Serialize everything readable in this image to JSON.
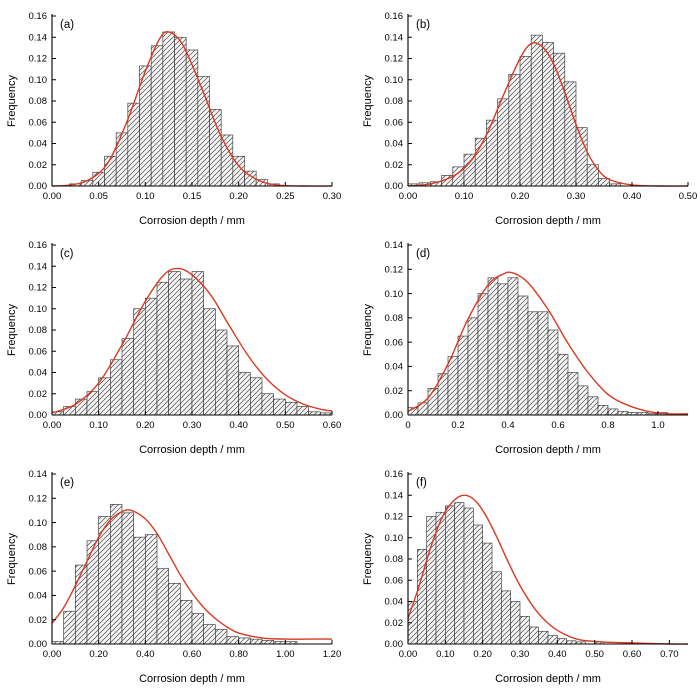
{
  "figure": {
    "background": "#ffffff",
    "curve_color": "#d93a21",
    "bar_fill": "#f5f5f5",
    "bar_hatch_color": "#4a4a4a",
    "bar_edge_color": "#2a2a2a",
    "axis_color": "#000000",
    "text_color": "#000000"
  },
  "chart_data": [
    {
      "type": "bar",
      "panel_label": "(a)",
      "xlabel": "Corrosion depth / mm",
      "ylabel": "Frequency",
      "xlim": [
        0,
        0.3
      ],
      "ylim": [
        0,
        0.16
      ],
      "xtick_vals": [
        0,
        0.05,
        0.1,
        0.15,
        0.2,
        0.25,
        0.3
      ],
      "xtick_labels": [
        "0.00",
        "0.05",
        "0.10",
        "0.15",
        "0.20",
        "0.25",
        "0.30"
      ],
      "ytick_vals": [
        0,
        0.02,
        0.04,
        0.06,
        0.08,
        0.1,
        0.12,
        0.14,
        0.16
      ],
      "ytick_labels": [
        "0.00",
        "0.02",
        "0.04",
        "0.06",
        "0.08",
        "0.10",
        "0.12",
        "0.14",
        "0.16"
      ],
      "bin_width": 0.0125,
      "bars": [
        [
          0.025,
          0.002
        ],
        [
          0.0375,
          0.005
        ],
        [
          0.05,
          0.013
        ],
        [
          0.0625,
          0.028
        ],
        [
          0.075,
          0.05
        ],
        [
          0.0875,
          0.078
        ],
        [
          0.1,
          0.113
        ],
        [
          0.1125,
          0.132
        ],
        [
          0.125,
          0.145
        ],
        [
          0.1375,
          0.14
        ],
        [
          0.15,
          0.128
        ],
        [
          0.1625,
          0.103
        ],
        [
          0.175,
          0.072
        ],
        [
          0.1875,
          0.048
        ],
        [
          0.2,
          0.028
        ],
        [
          0.2125,
          0.014
        ],
        [
          0.225,
          0.006
        ],
        [
          0.2375,
          0.002
        ]
      ],
      "fit_curve": [
        [
          0,
          0
        ],
        [
          0.02,
          0.001
        ],
        [
          0.04,
          0.006
        ],
        [
          0.06,
          0.022
        ],
        [
          0.08,
          0.06
        ],
        [
          0.1,
          0.108
        ],
        [
          0.115,
          0.138
        ],
        [
          0.125,
          0.145
        ],
        [
          0.14,
          0.133
        ],
        [
          0.16,
          0.093
        ],
        [
          0.18,
          0.049
        ],
        [
          0.2,
          0.019
        ],
        [
          0.22,
          0.006
        ],
        [
          0.24,
          0.001
        ],
        [
          0.27,
          0
        ],
        [
          0.3,
          0
        ]
      ]
    },
    {
      "type": "bar",
      "panel_label": "(b)",
      "xlabel": "Corrosion depth / mm",
      "ylabel": "Frequency",
      "xlim": [
        0,
        0.5
      ],
      "ylim": [
        0,
        0.16
      ],
      "xtick_vals": [
        0,
        0.1,
        0.2,
        0.3,
        0.4,
        0.5
      ],
      "xtick_labels": [
        "0.00",
        "0.10",
        "0.20",
        "0.30",
        "0.40",
        "0.50"
      ],
      "ytick_vals": [
        0,
        0.02,
        0.04,
        0.06,
        0.08,
        0.1,
        0.12,
        0.14,
        0.16
      ],
      "ytick_labels": [
        "0.00",
        "0.02",
        "0.04",
        "0.06",
        "0.08",
        "0.10",
        "0.12",
        "0.14",
        "0.16"
      ],
      "bin_width": 0.02,
      "bars": [
        [
          0.01,
          0.002
        ],
        [
          0.03,
          0.003
        ],
        [
          0.05,
          0.004
        ],
        [
          0.07,
          0.01
        ],
        [
          0.09,
          0.018
        ],
        [
          0.11,
          0.03
        ],
        [
          0.13,
          0.045
        ],
        [
          0.15,
          0.062
        ],
        [
          0.17,
          0.082
        ],
        [
          0.19,
          0.105
        ],
        [
          0.21,
          0.122
        ],
        [
          0.23,
          0.142
        ],
        [
          0.25,
          0.135
        ],
        [
          0.27,
          0.125
        ],
        [
          0.29,
          0.098
        ],
        [
          0.31,
          0.055
        ],
        [
          0.33,
          0.02
        ],
        [
          0.35,
          0.007
        ],
        [
          0.37,
          0.002
        ]
      ],
      "fit_curve": [
        [
          0,
          0
        ],
        [
          0.04,
          0.002
        ],
        [
          0.08,
          0.009
        ],
        [
          0.11,
          0.022
        ],
        [
          0.14,
          0.048
        ],
        [
          0.17,
          0.085
        ],
        [
          0.2,
          0.12
        ],
        [
          0.22,
          0.134
        ],
        [
          0.24,
          0.131
        ],
        [
          0.26,
          0.115
        ],
        [
          0.28,
          0.088
        ],
        [
          0.3,
          0.058
        ],
        [
          0.32,
          0.032
        ],
        [
          0.34,
          0.015
        ],
        [
          0.36,
          0.006
        ],
        [
          0.4,
          0.001
        ],
        [
          0.45,
          0
        ],
        [
          0.5,
          0
        ]
      ]
    },
    {
      "type": "bar",
      "panel_label": "(c)",
      "xlabel": "Corrosion depth / mm",
      "ylabel": "Frequency",
      "xlim": [
        0,
        0.6
      ],
      "ylim": [
        0,
        0.16
      ],
      "xtick_vals": [
        0,
        0.1,
        0.2,
        0.3,
        0.4,
        0.5,
        0.6
      ],
      "xtick_labels": [
        "0.00",
        "0.10",
        "0.20",
        "0.30",
        "0.40",
        "0.50",
        "0.60"
      ],
      "ytick_vals": [
        0,
        0.02,
        0.04,
        0.06,
        0.08,
        0.1,
        0.12,
        0.14,
        0.16
      ],
      "ytick_labels": [
        "0.00",
        "0.02",
        "0.04",
        "0.06",
        "0.08",
        "0.10",
        "0.12",
        "0.14",
        "0.16"
      ],
      "bin_width": 0.025,
      "bars": [
        [
          0.0125,
          0.003
        ],
        [
          0.0375,
          0.008
        ],
        [
          0.0625,
          0.015
        ],
        [
          0.0875,
          0.022
        ],
        [
          0.1125,
          0.035
        ],
        [
          0.1375,
          0.052
        ],
        [
          0.1625,
          0.072
        ],
        [
          0.1875,
          0.1
        ],
        [
          0.2125,
          0.11
        ],
        [
          0.2375,
          0.125
        ],
        [
          0.2625,
          0.135
        ],
        [
          0.2875,
          0.128
        ],
        [
          0.3125,
          0.135
        ],
        [
          0.3375,
          0.1
        ],
        [
          0.3625,
          0.08
        ],
        [
          0.3875,
          0.065
        ],
        [
          0.4125,
          0.04
        ],
        [
          0.4375,
          0.035
        ],
        [
          0.4625,
          0.02
        ],
        [
          0.4875,
          0.015
        ],
        [
          0.5125,
          0.012
        ],
        [
          0.5375,
          0.008
        ],
        [
          0.5625,
          0.003
        ],
        [
          0.5875,
          0.002
        ]
      ],
      "fit_curve": [
        [
          0,
          0.002
        ],
        [
          0.05,
          0.01
        ],
        [
          0.1,
          0.03
        ],
        [
          0.15,
          0.066
        ],
        [
          0.2,
          0.107
        ],
        [
          0.24,
          0.132
        ],
        [
          0.27,
          0.138
        ],
        [
          0.3,
          0.132
        ],
        [
          0.34,
          0.113
        ],
        [
          0.38,
          0.084
        ],
        [
          0.42,
          0.056
        ],
        [
          0.46,
          0.034
        ],
        [
          0.5,
          0.019
        ],
        [
          0.54,
          0.01
        ],
        [
          0.58,
          0.005
        ],
        [
          0.6,
          0.004
        ]
      ]
    },
    {
      "type": "bar",
      "panel_label": "(d)",
      "xlabel": "Corrosion depth / mm",
      "ylabel": "Frequency",
      "xlim": [
        0,
        1.12
      ],
      "ylim": [
        0,
        0.14
      ],
      "xtick_vals": [
        0,
        0.2,
        0.4,
        0.6,
        0.8,
        1.0
      ],
      "xtick_labels": [
        "0",
        "0.2",
        "0.4",
        "0.6",
        "0.8",
        "1.0"
      ],
      "ytick_vals": [
        0,
        0.02,
        0.04,
        0.06,
        0.08,
        0.1,
        0.12,
        0.14
      ],
      "ytick_labels": [
        "0.00",
        "0.02",
        "0.04",
        "0.06",
        "0.08",
        "0.10",
        "0.12",
        "0.14"
      ],
      "bin_width": 0.04,
      "bars": [
        [
          0.02,
          0.006
        ],
        [
          0.06,
          0.01
        ],
        [
          0.1,
          0.022
        ],
        [
          0.14,
          0.034
        ],
        [
          0.18,
          0.048
        ],
        [
          0.22,
          0.065
        ],
        [
          0.26,
          0.08
        ],
        [
          0.3,
          0.1
        ],
        [
          0.34,
          0.113
        ],
        [
          0.38,
          0.108
        ],
        [
          0.42,
          0.113
        ],
        [
          0.46,
          0.098
        ],
        [
          0.5,
          0.085
        ],
        [
          0.54,
          0.085
        ],
        [
          0.58,
          0.07
        ],
        [
          0.62,
          0.05
        ],
        [
          0.66,
          0.035
        ],
        [
          0.7,
          0.024
        ],
        [
          0.74,
          0.015
        ],
        [
          0.78,
          0.008
        ],
        [
          0.82,
          0.005
        ],
        [
          0.86,
          0.003
        ],
        [
          0.9,
          0.002
        ],
        [
          0.94,
          0.002
        ],
        [
          0.98,
          0.001
        ],
        [
          1.02,
          0.002
        ],
        [
          1.06,
          0.001
        ]
      ],
      "fit_curve": [
        [
          0,
          0.003
        ],
        [
          0.08,
          0.014
        ],
        [
          0.16,
          0.042
        ],
        [
          0.24,
          0.079
        ],
        [
          0.32,
          0.107
        ],
        [
          0.38,
          0.116
        ],
        [
          0.42,
          0.117
        ],
        [
          0.48,
          0.109
        ],
        [
          0.56,
          0.087
        ],
        [
          0.64,
          0.059
        ],
        [
          0.72,
          0.035
        ],
        [
          0.8,
          0.017
        ],
        [
          0.88,
          0.008
        ],
        [
          0.96,
          0.003
        ],
        [
          1.04,
          0.001
        ],
        [
          1.12,
          0.001
        ]
      ]
    },
    {
      "type": "bar",
      "panel_label": "(e)",
      "xlabel": "Corrosion depth / mm",
      "ylabel": "Frequency",
      "xlim": [
        0,
        1.2
      ],
      "ylim": [
        0,
        0.14
      ],
      "xtick_vals": [
        0,
        0.2,
        0.4,
        0.6,
        0.8,
        1.0,
        1.2
      ],
      "xtick_labels": [
        "0.00",
        "0.20",
        "0.40",
        "0.60",
        "0.80",
        "1.00",
        "1.20"
      ],
      "ytick_vals": [
        0,
        0.02,
        0.04,
        0.06,
        0.08,
        0.1,
        0.12,
        0.14
      ],
      "ytick_labels": [
        "0.00",
        "0.02",
        "0.04",
        "0.06",
        "0.08",
        "0.10",
        "0.12",
        "0.14"
      ],
      "bin_width": 0.05,
      "bars": [
        [
          0.025,
          0.002
        ],
        [
          0.075,
          0.027
        ],
        [
          0.125,
          0.065
        ],
        [
          0.175,
          0.085
        ],
        [
          0.225,
          0.105
        ],
        [
          0.275,
          0.115
        ],
        [
          0.325,
          0.108
        ],
        [
          0.375,
          0.088
        ],
        [
          0.425,
          0.09
        ],
        [
          0.475,
          0.062
        ],
        [
          0.525,
          0.05
        ],
        [
          0.575,
          0.036
        ],
        [
          0.625,
          0.025
        ],
        [
          0.675,
          0.016
        ],
        [
          0.725,
          0.012
        ],
        [
          0.775,
          0.006
        ],
        [
          0.825,
          0.005
        ],
        [
          0.875,
          0.004
        ],
        [
          0.925,
          0.003
        ],
        [
          0.975,
          0.002
        ],
        [
          1.025,
          0.002
        ]
      ],
      "fit_curve": [
        [
          0,
          0.017
        ],
        [
          0.05,
          0.03
        ],
        [
          0.1,
          0.048
        ],
        [
          0.15,
          0.068
        ],
        [
          0.2,
          0.088
        ],
        [
          0.25,
          0.102
        ],
        [
          0.3,
          0.109
        ],
        [
          0.34,
          0.11
        ],
        [
          0.4,
          0.103
        ],
        [
          0.45,
          0.091
        ],
        [
          0.5,
          0.074
        ],
        [
          0.55,
          0.057
        ],
        [
          0.6,
          0.042
        ],
        [
          0.65,
          0.03
        ],
        [
          0.7,
          0.021
        ],
        [
          0.75,
          0.014
        ],
        [
          0.8,
          0.009
        ],
        [
          0.9,
          0.005
        ],
        [
          1.0,
          0.004
        ],
        [
          1.1,
          0.004
        ],
        [
          1.2,
          0.004
        ]
      ]
    },
    {
      "type": "bar",
      "panel_label": "(f)",
      "xlabel": "Corrosion depth / mm",
      "ylabel": "Frequency",
      "xlim": [
        0,
        0.75
      ],
      "ylim": [
        0,
        0.16
      ],
      "xtick_vals": [
        0,
        0.1,
        0.2,
        0.3,
        0.4,
        0.5,
        0.6,
        0.7
      ],
      "xtick_labels": [
        "0.00",
        "0.10",
        "0.20",
        "0.30",
        "0.40",
        "0.50",
        "0.60",
        "0.70"
      ],
      "ytick_vals": [
        0,
        0.02,
        0.04,
        0.06,
        0.08,
        0.1,
        0.12,
        0.14,
        0.16
      ],
      "ytick_labels": [
        "0.00",
        "0.02",
        "0.04",
        "0.06",
        "0.08",
        "0.10",
        "0.12",
        "0.14",
        "0.16"
      ],
      "bin_width": 0.025,
      "bars": [
        [
          0.0125,
          0.04
        ],
        [
          0.0375,
          0.089
        ],
        [
          0.0625,
          0.12
        ],
        [
          0.0875,
          0.124
        ],
        [
          0.1125,
          0.13
        ],
        [
          0.1375,
          0.133
        ],
        [
          0.1625,
          0.128
        ],
        [
          0.1875,
          0.112
        ],
        [
          0.2125,
          0.095
        ],
        [
          0.2375,
          0.068
        ],
        [
          0.2625,
          0.05
        ],
        [
          0.2875,
          0.04
        ],
        [
          0.3125,
          0.026
        ],
        [
          0.3375,
          0.016
        ],
        [
          0.3625,
          0.012
        ],
        [
          0.3875,
          0.008
        ],
        [
          0.4125,
          0.005
        ],
        [
          0.4375,
          0.003
        ],
        [
          0.4625,
          0.002
        ],
        [
          0.5125,
          0.002
        ]
      ],
      "fit_curve": [
        [
          0,
          0.024
        ],
        [
          0.03,
          0.055
        ],
        [
          0.06,
          0.09
        ],
        [
          0.09,
          0.118
        ],
        [
          0.12,
          0.134
        ],
        [
          0.15,
          0.14
        ],
        [
          0.18,
          0.135
        ],
        [
          0.21,
          0.12
        ],
        [
          0.24,
          0.099
        ],
        [
          0.27,
          0.076
        ],
        [
          0.3,
          0.055
        ],
        [
          0.34,
          0.033
        ],
        [
          0.38,
          0.018
        ],
        [
          0.42,
          0.009
        ],
        [
          0.46,
          0.004
        ],
        [
          0.52,
          0.002
        ],
        [
          0.6,
          0.001
        ],
        [
          0.7,
          0
        ],
        [
          0.75,
          0
        ]
      ]
    }
  ]
}
